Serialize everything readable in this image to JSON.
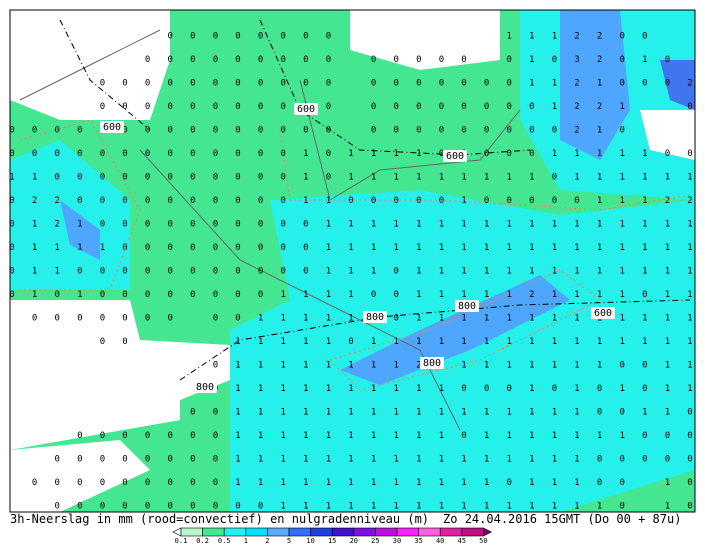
{
  "header": {
    "title": "3h-Neerslag in mm (rood=convectief) en nulgradenniveau (m)",
    "valid_time": "Zo 24.04.2016 15GMT (Do 00 + 87u)"
  },
  "contour_labels": [
    600,
    600,
    600,
    600,
    800,
    800,
    800,
    800
  ],
  "colorbar": {
    "labels": [
      0.1,
      0.2,
      0.5,
      1,
      2,
      5,
      10,
      15,
      20,
      25,
      30,
      35,
      40,
      45,
      50
    ],
    "colors": [
      "#ffffff",
      "#b8f5c8",
      "#40e890",
      "#20f0f0",
      "#00e0ff",
      "#5aa8ff",
      "#3070ff",
      "#2040e0",
      "#4010d0",
      "#8010e0",
      "#c010e0",
      "#ff20ff",
      "#ff60e0",
      "#e020a0",
      "#c01080",
      "#800060"
    ]
  },
  "grid": [
    [
      null,
      null,
      null,
      null,
      null,
      null,
      null,
      0,
      0,
      0,
      0,
      0,
      0,
      0,
      0,
      null,
      null,
      null,
      null,
      null,
      null,
      null,
      1,
      1,
      1,
      2,
      2,
      0,
      0,
      null,
      null
    ],
    [
      null,
      null,
      null,
      null,
      null,
      null,
      0,
      0,
      0,
      0,
      0,
      0,
      0,
      0,
      0,
      null,
      0,
      0,
      0,
      0,
      0,
      null,
      0,
      1,
      0,
      3,
      2,
      0,
      1,
      0,
      null
    ],
    [
      null,
      null,
      null,
      null,
      0,
      0,
      0,
      0,
      0,
      0,
      0,
      0,
      0,
      0,
      0,
      null,
      0,
      0,
      0,
      0,
      0,
      0,
      0,
      1,
      1,
      2,
      1,
      0,
      0,
      0,
      2
    ],
    [
      null,
      null,
      null,
      null,
      0,
      0,
      0,
      0,
      0,
      0,
      0,
      0,
      0,
      0,
      0,
      null,
      0,
      0,
      0,
      0,
      0,
      0,
      0,
      0,
      1,
      2,
      2,
      1,
      null,
      null,
      0
    ],
    [
      0,
      0,
      0,
      0,
      0,
      0,
      0,
      0,
      0,
      0,
      0,
      0,
      0,
      0,
      0,
      null,
      0,
      0,
      0,
      0,
      0,
      0,
      0,
      0,
      0,
      2,
      1,
      0,
      null,
      null,
      null
    ],
    [
      0,
      0,
      0,
      0,
      0,
      0,
      0,
      0,
      0,
      0,
      0,
      0,
      0,
      1,
      0,
      1,
      1,
      1,
      1,
      0,
      0,
      0,
      0,
      0,
      1,
      1,
      1,
      1,
      1,
      0,
      0
    ],
    [
      1,
      1,
      0,
      0,
      0,
      0,
      0,
      0,
      0,
      0,
      0,
      0,
      0,
      1,
      0,
      1,
      1,
      1,
      1,
      1,
      1,
      1,
      1,
      1,
      0,
      1,
      1,
      1,
      1,
      1,
      1
    ],
    [
      0,
      2,
      2,
      0,
      0,
      0,
      0,
      0,
      0,
      0,
      0,
      0,
      0,
      1,
      1,
      0,
      0,
      0,
      0,
      0,
      1,
      0,
      0,
      0,
      0,
      0,
      1,
      1,
      1,
      2,
      2
    ],
    [
      0,
      1,
      2,
      1,
      0,
      0,
      0,
      0,
      0,
      0,
      0,
      0,
      0,
      0,
      1,
      1,
      1,
      1,
      1,
      1,
      1,
      1,
      1,
      1,
      1,
      1,
      1,
      1,
      1,
      1,
      1
    ],
    [
      0,
      1,
      1,
      1,
      1,
      0,
      0,
      0,
      0,
      0,
      0,
      0,
      0,
      0,
      1,
      1,
      1,
      1,
      1,
      1,
      1,
      1,
      1,
      1,
      1,
      1,
      1,
      1,
      1,
      1,
      1
    ],
    [
      0,
      1,
      1,
      0,
      0,
      0,
      0,
      0,
      0,
      0,
      0,
      0,
      0,
      0,
      1,
      1,
      1,
      0,
      1,
      1,
      1,
      1,
      1,
      1,
      1,
      1,
      1,
      1,
      1,
      1,
      1
    ],
    [
      0,
      1,
      0,
      1,
      0,
      0,
      0,
      0,
      0,
      0,
      0,
      0,
      1,
      1,
      1,
      1,
      0,
      0,
      1,
      1,
      1,
      1,
      1,
      2,
      1,
      1,
      1,
      1,
      0,
      1,
      1
    ],
    [
      null,
      0,
      0,
      0,
      0,
      0,
      0,
      0,
      null,
      0,
      0,
      1,
      1,
      1,
      1,
      1,
      0,
      0,
      1,
      1,
      1,
      1,
      1,
      1,
      1,
      1,
      1,
      1,
      1,
      1,
      1
    ],
    [
      null,
      null,
      null,
      null,
      0,
      0,
      null,
      null,
      null,
      null,
      1,
      1,
      1,
      1,
      1,
      0,
      1,
      1,
      1,
      1,
      1,
      1,
      1,
      1,
      1,
      1,
      1,
      1,
      1,
      1,
      1
    ],
    [
      null,
      null,
      null,
      null,
      null,
      null,
      null,
      null,
      null,
      0,
      1,
      1,
      1,
      1,
      1,
      1,
      1,
      1,
      2,
      1,
      1,
      1,
      1,
      1,
      1,
      1,
      1,
      0,
      0,
      1,
      1
    ],
    [
      null,
      null,
      null,
      null,
      null,
      null,
      null,
      null,
      null,
      0,
      1,
      1,
      1,
      1,
      1,
      1,
      1,
      1,
      1,
      1,
      0,
      0,
      0,
      1,
      0,
      1,
      0,
      1,
      0,
      1,
      1
    ],
    [
      null,
      null,
      null,
      null,
      null,
      null,
      null,
      null,
      0,
      0,
      1,
      1,
      1,
      1,
      1,
      1,
      1,
      1,
      1,
      1,
      1,
      1,
      1,
      1,
      1,
      1,
      0,
      0,
      1,
      1,
      0
    ],
    [
      null,
      null,
      null,
      0,
      0,
      0,
      0,
      0,
      0,
      0,
      1,
      1,
      1,
      1,
      1,
      1,
      1,
      1,
      1,
      1,
      0,
      1,
      1,
      1,
      1,
      1,
      1,
      1,
      0,
      0,
      0
    ],
    [
      null,
      null,
      0,
      0,
      0,
      0,
      0,
      0,
      0,
      0,
      1,
      1,
      1,
      1,
      1,
      1,
      1,
      1,
      1,
      1,
      1,
      1,
      1,
      1,
      1,
      1,
      0,
      0,
      0,
      0,
      0
    ],
    [
      null,
      0,
      0,
      0,
      0,
      0,
      0,
      0,
      0,
      0,
      1,
      1,
      1,
      1,
      1,
      1,
      1,
      1,
      1,
      1,
      1,
      1,
      0,
      1,
      1,
      1,
      0,
      0,
      null,
      1,
      0
    ],
    [
      null,
      null,
      0,
      0,
      0,
      0,
      0,
      0,
      0,
      0,
      0,
      0,
      1,
      1,
      1,
      1,
      1,
      1,
      1,
      1,
      1,
      1,
      1,
      1,
      1,
      1,
      1,
      0,
      null,
      1,
      0
    ]
  ]
}
